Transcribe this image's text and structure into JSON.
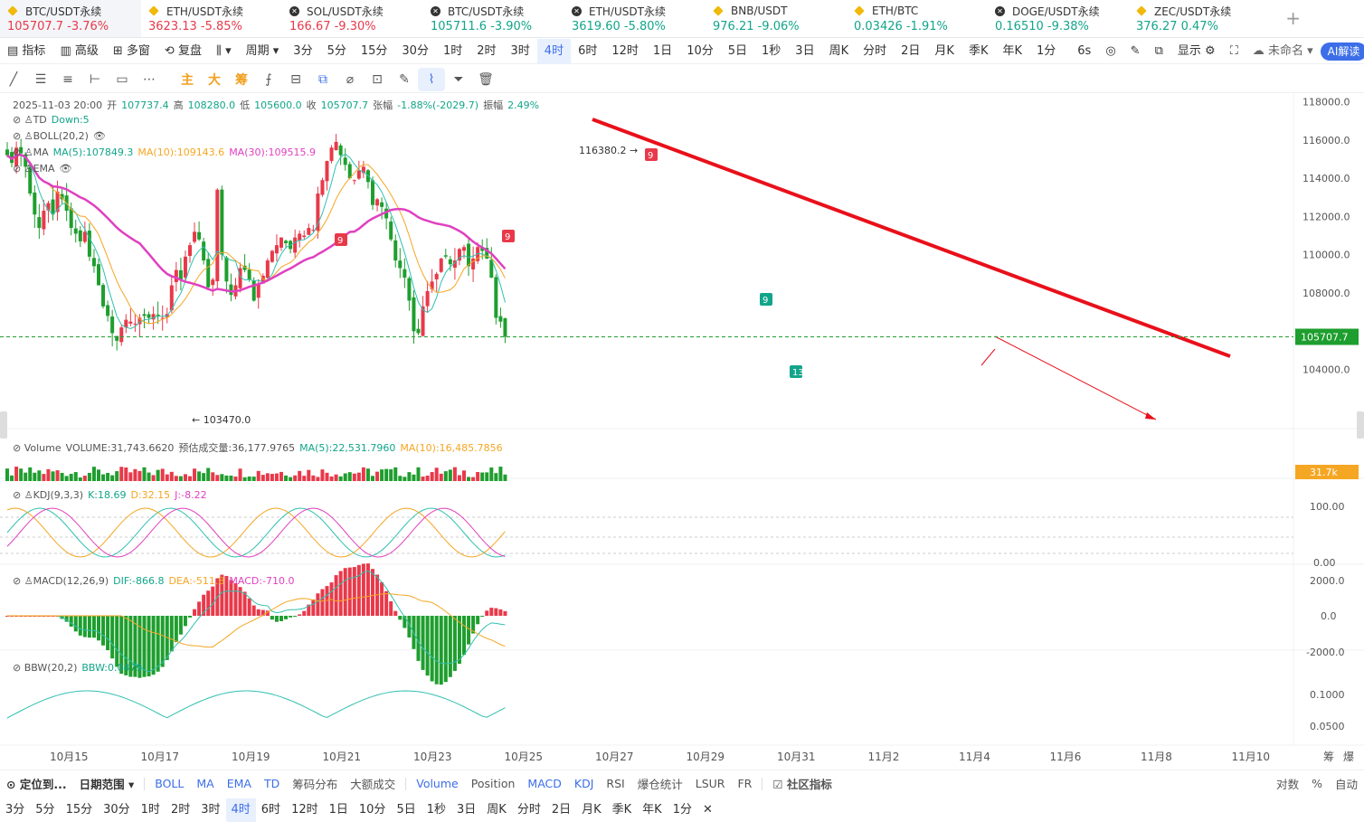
{
  "tickers": [
    {
      "name": "BTC/USDT永续",
      "price": "105707.7",
      "change": "-3.76%",
      "icon": "binance-icon",
      "dir": "dn",
      "active": true
    },
    {
      "name": "ETH/USDT永续",
      "price": "3623.13",
      "change": "-5.85%",
      "icon": "binance-icon",
      "dir": "dn"
    },
    {
      "name": "SOL/USDT永续",
      "price": "166.67",
      "change": "-9.30%",
      "icon": "okx-icon",
      "dir": "dn"
    },
    {
      "name": "BTC/USDT永续",
      "price": "105711.6",
      "change": "-3.90%",
      "icon": "okx-icon",
      "dir": "up"
    },
    {
      "name": "ETH/USDT永续",
      "price": "3619.60",
      "change": "-5.80%",
      "icon": "okx-icon",
      "dir": "up"
    },
    {
      "name": "BNB/USDT",
      "price": "976.21",
      "change": "-9.06%",
      "icon": "binance-icon",
      "dir": "up"
    },
    {
      "name": "ETH/BTC",
      "price": "0.03426",
      "change": "-1.91%",
      "icon": "binance-icon",
      "dir": "up"
    },
    {
      "name": "DOGE/USDT永续",
      "price": "0.16510",
      "change": "-9.38%",
      "icon": "okx-icon",
      "dir": "up"
    },
    {
      "name": "ZEC/USDT永续",
      "price": "376.27",
      "change": "0.47%",
      "icon": "binance-icon",
      "dir": "up"
    }
  ],
  "add_tab": "+",
  "toolbar": {
    "indicators": "指标",
    "advanced": "高级",
    "multi": "多窗",
    "replay": "复盘",
    "period_label": "周期",
    "periods": [
      "3分",
      "5分",
      "15分",
      "30分",
      "1时",
      "2时",
      "3时",
      "4时",
      "6时",
      "12时",
      "1日",
      "10分",
      "5日",
      "1秒",
      "3日",
      "周K",
      "分时",
      "2日",
      "月K",
      "季K",
      "年K",
      "1分"
    ],
    "selected_period": "4时",
    "refresh": "6s",
    "display": "显示",
    "unnamed": "未命名",
    "ai": "AI解读"
  },
  "draw_tools": [
    "line-tool-icon",
    "hline-tool-icon",
    "parallel-tool-icon",
    "ray-tool-icon",
    "rect-tool-icon",
    "more-tool-icon",
    "主",
    "大",
    "筹",
    "formula-icon",
    "copy-icon",
    "pin-icon",
    "trash-icon",
    "magnet-icon",
    "filter-icon",
    "delete-icon"
  ],
  "ohlc": {
    "time": "2025-11-03 20:00",
    "open_l": "开",
    "open": "107737.4",
    "high_l": "高",
    "high": "108280.0",
    "low_l": "低",
    "low": "105600.0",
    "close_l": "收",
    "close": "105707.7",
    "chg_l": "张幅",
    "chg": "-1.88%(-2029.7)",
    "amp_l": "振幅",
    "amp": "2.49%"
  },
  "legends": {
    "td": "TD",
    "td_val": "Down:5",
    "boll": "BOLL(20,2)",
    "ma": "MA",
    "ma5": "MA(5):107849.3",
    "ma10": "MA(10):109143.6",
    "ma30": "MA(30):109515.9",
    "ema": "EMA",
    "vol": "Volume",
    "vol_val": "VOLUME:31,743.6620",
    "vol_pred": "预估成交量:36,177.9765",
    "vol_ma5": "MA(5):22,531.7960",
    "vol_ma10": "MA(10):16,485.7856",
    "kdj": "KDJ(9,3,3)",
    "k": "K:18.69",
    "d": "D:32.15",
    "j": "J:-8.22",
    "macd": "MACD(12,26,9)",
    "dif": "DIF:-866.8",
    "dea": "DEA:-511.8",
    "macd_v": "MACD:-710.0",
    "bbw": "BBW(20,2)",
    "bbw_v": "BBW:0.0479"
  },
  "colors": {
    "up": "#e8394a",
    "down": "#12a58a",
    "bull_candle": "#e8394a",
    "bear_candle": "#1e9e2e",
    "ma30": "#e040c0",
    "ma10": "#f5a623",
    "ma5": "#30c0b0",
    "trend": "#e8101a"
  },
  "chart_data": {
    "type": "candlestick",
    "y_axis": [
      "118000.0",
      "116000.0",
      "114000.0",
      "112000.0",
      "110000.0",
      "108000.0",
      "104000.0"
    ],
    "ylim": [
      102800,
      118400
    ],
    "last_price": "105707.7",
    "high_label": "116380.2",
    "low_label": "103470.0",
    "td_labels": [
      "9",
      "9",
      "9",
      "9",
      "13"
    ],
    "x_labels": [
      "10月15",
      "10月17",
      "10月19",
      "10月21",
      "10月23",
      "10月25",
      "10月27",
      "10月29",
      "10月31",
      "11月2",
      "11月4",
      "11月6",
      "11月8",
      "11月10"
    ],
    "vol_axis": "31.7k",
    "kdj_axis": [
      "100.00",
      "0.00"
    ],
    "macd_axis": [
      "2000.0",
      "0.0",
      "-2000.0"
    ],
    "bbw_axis": [
      "0.1000",
      "0.0500"
    ],
    "closes": [
      115200,
      114800,
      115600,
      115300,
      114600,
      113200,
      112100,
      111400,
      112300,
      112700,
      112100,
      113300,
      112900,
      112300,
      111400,
      111100,
      110700,
      111200,
      109900,
      109400,
      108400,
      107300,
      106800,
      105900,
      105500,
      106200,
      106600,
      106500,
      106400,
      106700,
      106800,
      106700,
      106900,
      106800,
      106700,
      106900,
      108400,
      109200,
      108700,
      109900,
      110500,
      111200,
      110800,
      109700,
      108300,
      108700,
      113400,
      110000,
      108600,
      107900,
      108400,
      109300,
      109200,
      108700,
      107600,
      108500,
      108900,
      109700,
      110200,
      110500,
      110900,
      110600,
      110300,
      110900,
      111100,
      111000,
      111400,
      111300,
      113200,
      113900,
      114900,
      115600,
      115900,
      115200,
      114700,
      114000,
      113900,
      114400,
      114600,
      113800,
      112600,
      112900,
      112500,
      111900,
      110800,
      109700,
      109300,
      108800,
      107600,
      106000,
      105900,
      107300,
      108100,
      108600,
      109000,
      109800,
      109900,
      109500,
      109700,
      110300,
      110400,
      109400,
      109800,
      110400,
      110200,
      109800,
      108800,
      106700,
      106500,
      105708
    ]
  },
  "bottom": {
    "locate": "定位到...",
    "date_range": "日期范围",
    "indicators": [
      "BOLL",
      "MA",
      "EMA",
      "TD",
      "筹码分布",
      "大额成交"
    ],
    "sub": [
      "Volume",
      "Position",
      "MACD",
      "KDJ",
      "RSI",
      "爆仓统计",
      "LSUR",
      "FR"
    ],
    "community": "社区指标",
    "log": "对数",
    "pct": "%",
    "auto": "自动",
    "chip": "筹",
    "compress": "爆"
  },
  "periods2": [
    "3分",
    "5分",
    "15分",
    "30分",
    "1时",
    "2时",
    "3时",
    "4时",
    "6时",
    "12时",
    "1日",
    "10分",
    "5日",
    "1秒",
    "3日",
    "周K",
    "分时",
    "2日",
    "月K",
    "季K",
    "年K",
    "1分"
  ],
  "close_x": "✕"
}
